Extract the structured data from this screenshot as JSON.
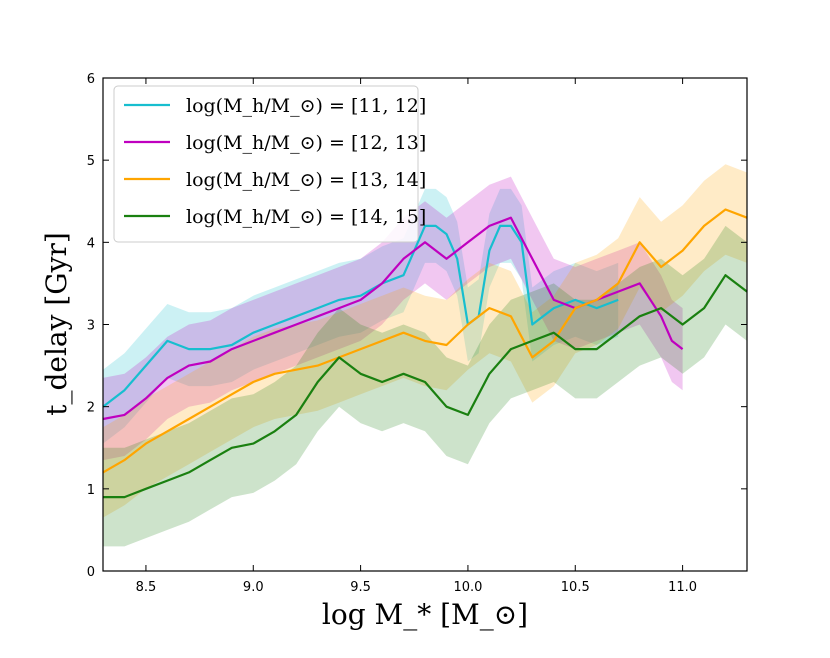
{
  "chart_data": {
    "type": "line",
    "title": "",
    "xlabel": "log M_* [M_⊙]",
    "ylabel": "t_delay [Gyr]",
    "xlim": [
      8.3,
      11.3
    ],
    "ylim": [
      0,
      6
    ],
    "xticks": [
      8.5,
      9.0,
      9.5,
      10.0,
      10.5,
      11.0
    ],
    "xtick_labels": [
      "8.5",
      "9.0",
      "9.5",
      "10.0",
      "10.5",
      "11.0"
    ],
    "yticks": [
      0,
      1,
      2,
      3,
      4,
      5,
      6
    ],
    "ytick_labels": [
      "0",
      "1",
      "2",
      "3",
      "4",
      "5",
      "6"
    ],
    "grid": false,
    "legend_position": "top-left",
    "series": [
      {
        "name": "log(M_h/M_⊙) = [11, 12]",
        "color": "#17becf",
        "x": [
          8.3,
          8.4,
          8.5,
          8.6,
          8.7,
          8.8,
          8.9,
          9.0,
          9.1,
          9.2,
          9.3,
          9.4,
          9.5,
          9.6,
          9.7,
          9.75,
          9.8,
          9.85,
          9.9,
          9.95,
          10.0,
          10.05,
          10.1,
          10.15,
          10.2,
          10.25,
          10.3,
          10.4,
          10.5,
          10.6,
          10.7
        ],
        "y": [
          2.0,
          2.2,
          2.5,
          2.8,
          2.7,
          2.7,
          2.75,
          2.9,
          3.0,
          3.1,
          3.2,
          3.3,
          3.35,
          3.5,
          3.6,
          3.9,
          4.2,
          4.2,
          4.1,
          3.8,
          3.0,
          3.1,
          3.9,
          4.2,
          4.2,
          4.0,
          3.0,
          3.2,
          3.3,
          3.2,
          3.3
        ]
      },
      {
        "name": "log(M_h/M_⊙) = [12, 13]",
        "color": "#bf00bf",
        "x": [
          8.3,
          8.4,
          8.5,
          8.6,
          8.7,
          8.8,
          8.9,
          9.0,
          9.1,
          9.2,
          9.3,
          9.4,
          9.5,
          9.6,
          9.7,
          9.8,
          9.9,
          10.0,
          10.1,
          10.2,
          10.3,
          10.4,
          10.5,
          10.6,
          10.7,
          10.8,
          10.9,
          10.95,
          11.0
        ],
        "y": [
          1.85,
          1.9,
          2.1,
          2.35,
          2.5,
          2.55,
          2.7,
          2.8,
          2.9,
          3.0,
          3.1,
          3.2,
          3.3,
          3.5,
          3.8,
          4.0,
          3.8,
          4.0,
          4.2,
          4.3,
          3.8,
          3.3,
          3.2,
          3.3,
          3.4,
          3.5,
          3.1,
          2.8,
          2.7
        ]
      },
      {
        "name": "log(M_h/M_⊙) = [13, 14]",
        "color": "#ffa500",
        "x": [
          8.3,
          8.4,
          8.5,
          8.6,
          8.7,
          8.8,
          8.9,
          9.0,
          9.1,
          9.2,
          9.3,
          9.4,
          9.5,
          9.6,
          9.7,
          9.8,
          9.9,
          10.0,
          10.1,
          10.2,
          10.3,
          10.4,
          10.5,
          10.6,
          10.7,
          10.8,
          10.9,
          11.0,
          11.1,
          11.2,
          11.3
        ],
        "y": [
          1.2,
          1.35,
          1.55,
          1.7,
          1.85,
          2.0,
          2.15,
          2.3,
          2.4,
          2.45,
          2.5,
          2.6,
          2.7,
          2.8,
          2.9,
          2.8,
          2.75,
          3.0,
          3.2,
          3.1,
          2.6,
          2.8,
          3.2,
          3.3,
          3.5,
          4.0,
          3.7,
          3.9,
          4.2,
          4.4,
          4.3
        ]
      },
      {
        "name": "log(M_h/M_⊙) = [14, 15]",
        "color": "#1a8010",
        "x": [
          8.3,
          8.4,
          8.5,
          8.6,
          8.7,
          8.8,
          8.9,
          9.0,
          9.1,
          9.2,
          9.3,
          9.4,
          9.5,
          9.6,
          9.7,
          9.8,
          9.9,
          10.0,
          10.1,
          10.2,
          10.3,
          10.4,
          10.5,
          10.6,
          10.7,
          10.8,
          10.9,
          11.0,
          11.1,
          11.2,
          11.3
        ],
        "y": [
          0.9,
          0.9,
          1.0,
          1.1,
          1.2,
          1.35,
          1.5,
          1.55,
          1.7,
          1.9,
          2.3,
          2.6,
          2.4,
          2.3,
          2.4,
          2.3,
          2.0,
          1.9,
          2.4,
          2.7,
          2.8,
          2.9,
          2.7,
          2.7,
          2.9,
          3.1,
          3.2,
          3.0,
          3.2,
          3.6,
          3.4
        ]
      }
    ]
  }
}
